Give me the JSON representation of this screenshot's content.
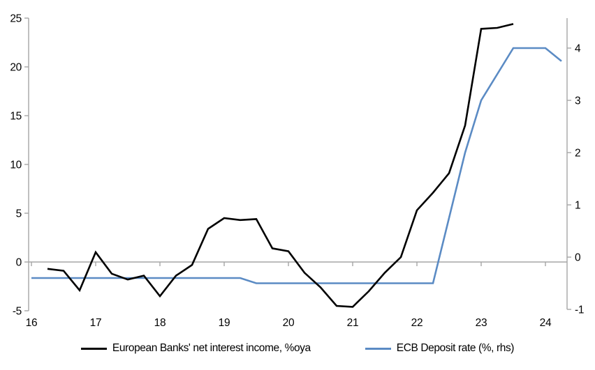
{
  "chart_data": {
    "type": "line",
    "title": "",
    "x_axis": {
      "min": 16,
      "max": 24.33,
      "ticks": [
        16,
        17,
        18,
        19,
        20,
        21,
        22,
        23,
        24
      ],
      "tick_labels": [
        "16",
        "17",
        "18",
        "19",
        "20",
        "21",
        "22",
        "23",
        "24"
      ]
    },
    "y_axis_left": {
      "min": -5,
      "max": 25,
      "ticks": [
        -5,
        0,
        5,
        10,
        15,
        20,
        25
      ],
      "tick_labels": [
        "-5",
        "0",
        "5",
        "10",
        "15",
        "20",
        "25"
      ]
    },
    "y_axis_right": {
      "min": -1,
      "max": 4.57,
      "ticks": [
        -1,
        0,
        1,
        2,
        3,
        4
      ],
      "tick_labels": [
        "-1",
        "0",
        "1",
        "2",
        "3",
        "4"
      ]
    },
    "grid": "zero-line-only",
    "legend_position": "bottom-center",
    "series": [
      {
        "id": "ecb",
        "name": "ECB Deposit rate (%, rhs)",
        "axis": "right",
        "color": "#5b8bc4",
        "x": [
          16.0,
          16.25,
          16.5,
          16.75,
          17.0,
          17.25,
          17.5,
          17.75,
          18.0,
          18.25,
          18.5,
          18.75,
          19.0,
          19.25,
          19.5,
          19.75,
          20.0,
          20.25,
          20.5,
          20.75,
          21.0,
          21.25,
          21.5,
          21.75,
          22.0,
          22.25,
          22.5,
          22.75,
          23.0,
          23.25,
          23.5,
          23.75,
          24.0,
          24.25
        ],
        "values": [
          -0.4,
          -0.4,
          -0.4,
          -0.4,
          -0.4,
          -0.4,
          -0.4,
          -0.4,
          -0.4,
          -0.4,
          -0.4,
          -0.4,
          -0.4,
          -0.4,
          -0.5,
          -0.5,
          -0.5,
          -0.5,
          -0.5,
          -0.5,
          -0.5,
          -0.5,
          -0.5,
          -0.5,
          -0.5,
          -0.5,
          0.75,
          2.0,
          3.0,
          3.5,
          4.0,
          4.0,
          4.0,
          3.75
        ]
      },
      {
        "id": "nii",
        "name": "European Banks' net interest income, %oya",
        "axis": "left",
        "color": "#000000",
        "x": [
          16.25,
          16.5,
          16.75,
          17.0,
          17.25,
          17.5,
          17.75,
          18.0,
          18.25,
          18.5,
          18.75,
          19.0,
          19.25,
          19.5,
          19.75,
          20.0,
          20.25,
          20.5,
          20.75,
          21.0,
          21.25,
          21.5,
          21.75,
          22.0,
          22.25,
          22.5,
          22.75,
          23.0,
          23.25,
          23.5
        ],
        "values": [
          -0.7,
          -0.9,
          -2.9,
          1.0,
          -1.2,
          -1.8,
          -1.4,
          -3.5,
          -1.4,
          -0.3,
          3.4,
          4.5,
          4.3,
          4.4,
          1.4,
          1.1,
          -1.1,
          -2.6,
          -4.5,
          -4.6,
          -3.0,
          -1.1,
          0.5,
          5.3,
          7.1,
          9.1,
          14.0,
          23.9,
          24.0,
          24.4
        ]
      }
    ]
  },
  "legend": {
    "nii_label": "European Banks' net interest income, %oya",
    "ecb_label": "ECB Deposit rate (%, rhs)"
  },
  "colors": {
    "axis": "#a6a6a6",
    "zero_line": "#a6a6a6",
    "text": "#000000",
    "nii_line": "#000000",
    "ecb_line": "#5b8bc4",
    "background": "#ffffff"
  }
}
